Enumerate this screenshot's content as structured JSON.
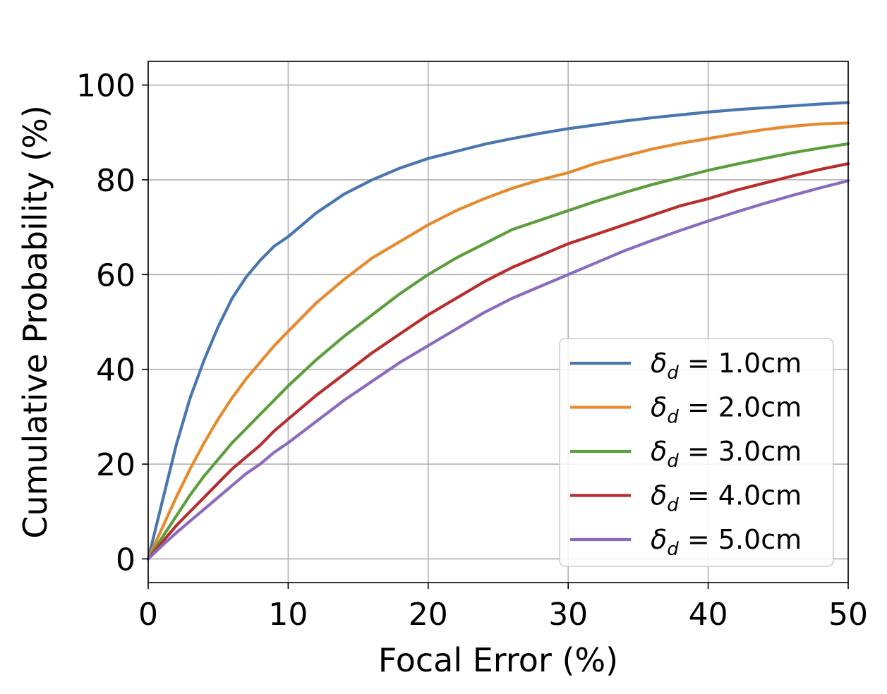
{
  "chart_data": {
    "type": "line",
    "xlabel": "Focal Error (%)",
    "ylabel": "Cumulative Probability (%)",
    "xlim": [
      0,
      50
    ],
    "ylim": [
      -5,
      105
    ],
    "xticks": [
      0,
      10,
      20,
      30,
      40,
      50
    ],
    "yticks": [
      0,
      20,
      40,
      60,
      80,
      100
    ],
    "grid": true,
    "legend_position": "lower-right",
    "x": [
      0,
      1,
      2,
      3,
      4,
      5,
      6,
      7,
      8,
      9,
      10,
      12,
      14,
      16,
      18,
      20,
      22,
      24,
      26,
      28,
      30,
      32,
      34,
      36,
      38,
      40,
      42,
      44,
      46,
      48,
      50
    ],
    "series": [
      {
        "name": "δd = 1.0cm",
        "symbol": "δ",
        "subscript": "d",
        "value_text": " = 1.0cm",
        "color": "#4a76b0",
        "values": [
          0,
          12,
          24,
          34,
          42,
          49,
          55,
          59.5,
          63,
          66,
          68,
          73,
          77,
          80,
          82.5,
          84.5,
          86,
          87.5,
          88.7,
          89.8,
          90.8,
          91.6,
          92.4,
          93.1,
          93.7,
          94.3,
          94.8,
          95.2,
          95.6,
          96,
          96.3
        ]
      },
      {
        "name": "δd = 2.0cm",
        "symbol": "δ",
        "subscript": "d",
        "value_text": " = 2.0cm",
        "color": "#e68a2e",
        "values": [
          0,
          6.5,
          13,
          19,
          24.5,
          29.5,
          34,
          38,
          41.5,
          45,
          48,
          54,
          59,
          63.5,
          67,
          70.5,
          73.5,
          76,
          78.2,
          80,
          81.5,
          83.5,
          85,
          86.5,
          87.7,
          88.7,
          89.7,
          90.6,
          91.3,
          91.8,
          92
        ]
      },
      {
        "name": "δd = 3.0cm",
        "symbol": "δ",
        "subscript": "d",
        "value_text": " = 3.0cm",
        "color": "#5b9e3e",
        "values": [
          0,
          4.5,
          9,
          13.5,
          17.5,
          21,
          24.5,
          27.5,
          30.5,
          33.5,
          36.5,
          42,
          47,
          51.5,
          56,
          60,
          63.5,
          66.5,
          69.5,
          71.5,
          73.5,
          75.5,
          77.3,
          79,
          80.5,
          82,
          83.3,
          84.5,
          85.7,
          86.7,
          87.6
        ]
      },
      {
        "name": "δd = 4.0cm",
        "symbol": "δ",
        "subscript": "d",
        "value_text": " = 4.0cm",
        "color": "#b82e2e",
        "values": [
          0,
          3.5,
          7,
          10,
          13,
          16,
          19,
          21.5,
          24,
          27,
          29.5,
          34.5,
          39,
          43.5,
          47.5,
          51.5,
          55,
          58.5,
          61.5,
          64,
          66.5,
          68.5,
          70.5,
          72.5,
          74.5,
          76,
          77.8,
          79.3,
          80.8,
          82.2,
          83.4
        ]
      },
      {
        "name": "δd = 5.0cm",
        "symbol": "δ",
        "subscript": "d",
        "value_text": " = 5.0cm",
        "color": "#8a6bbf",
        "values": [
          0,
          2.8,
          5.5,
          8,
          10.5,
          13,
          15.5,
          18,
          20,
          22.5,
          24.5,
          29,
          33.5,
          37.5,
          41.5,
          45,
          48.5,
          52,
          55,
          57.5,
          60,
          62.5,
          65,
          67.2,
          69.3,
          71.3,
          73.2,
          75,
          76.7,
          78.3,
          79.8
        ]
      }
    ]
  }
}
